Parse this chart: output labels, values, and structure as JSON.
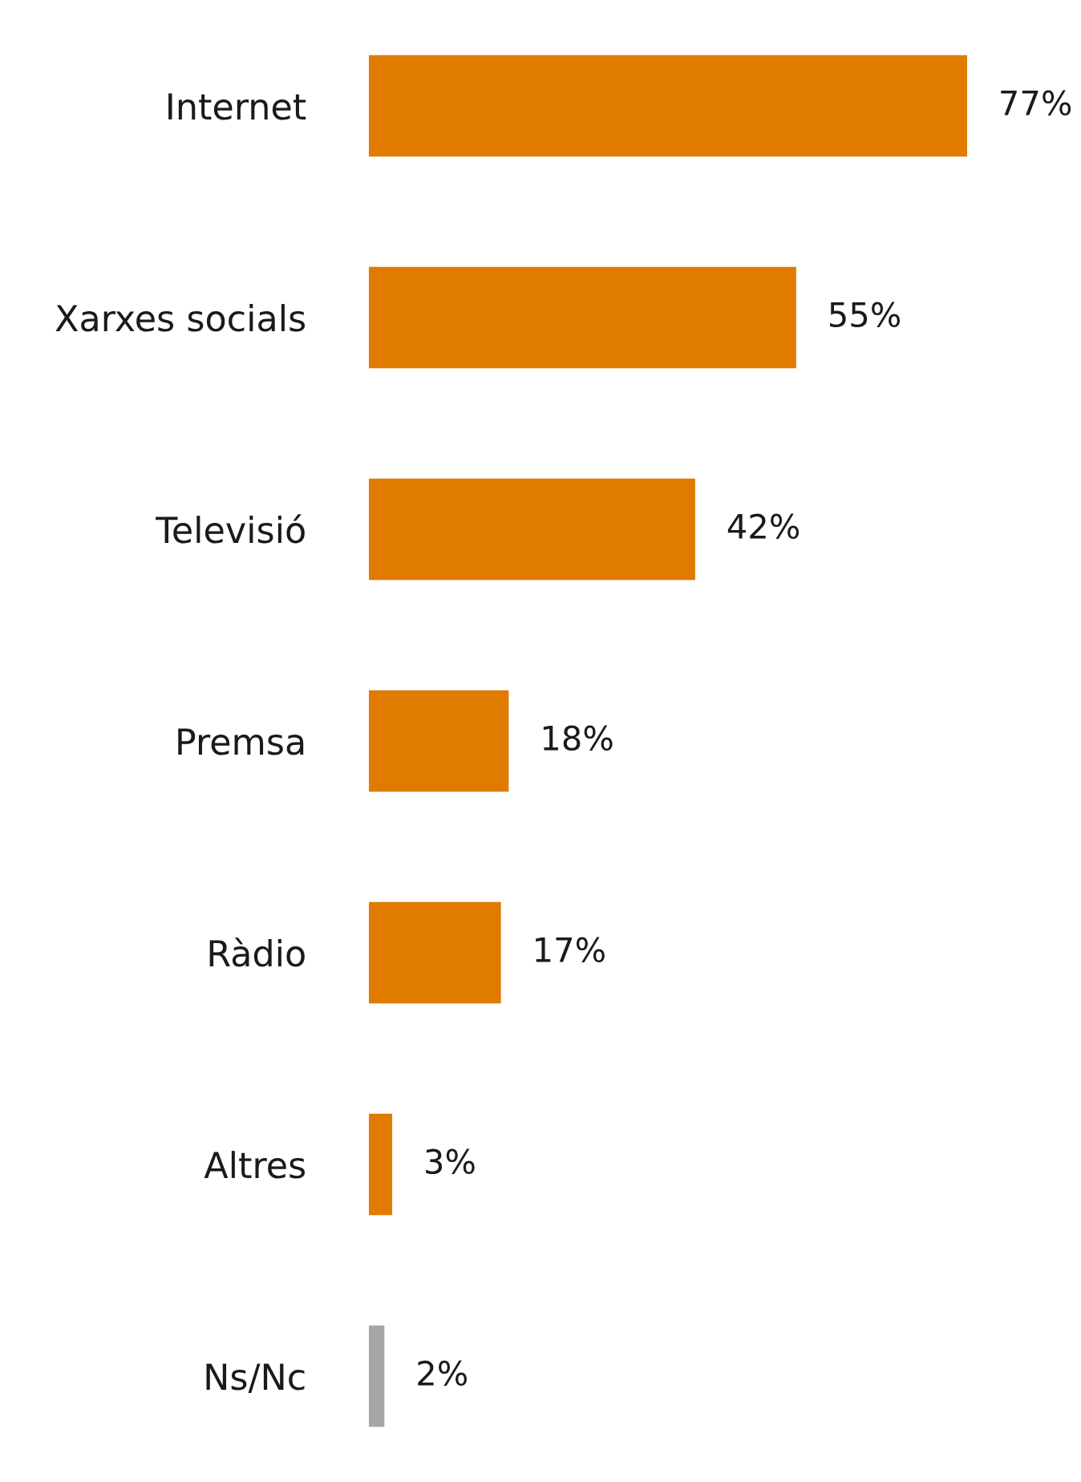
{
  "chart_data": {
    "type": "bar",
    "orientation": "horizontal",
    "tick_labels": "y",
    "categories": [
      "Internet",
      "Xarxes socials",
      "Televisió",
      "Premsa",
      "Ràdio",
      "Altres",
      "Ns/Nc"
    ],
    "values": [
      77,
      55,
      42,
      18,
      17,
      3,
      2
    ],
    "colors": [
      "#e07b00",
      "#e07b00",
      "#e07b00",
      "#e07b00",
      "#e07b00",
      "#e07b00",
      "#a6a6a6"
    ],
    "value_labels": [
      "77%",
      "55%",
      "42%",
      "18%",
      "17%",
      "3%",
      "2%"
    ],
    "grid": false,
    "legend": false
  }
}
